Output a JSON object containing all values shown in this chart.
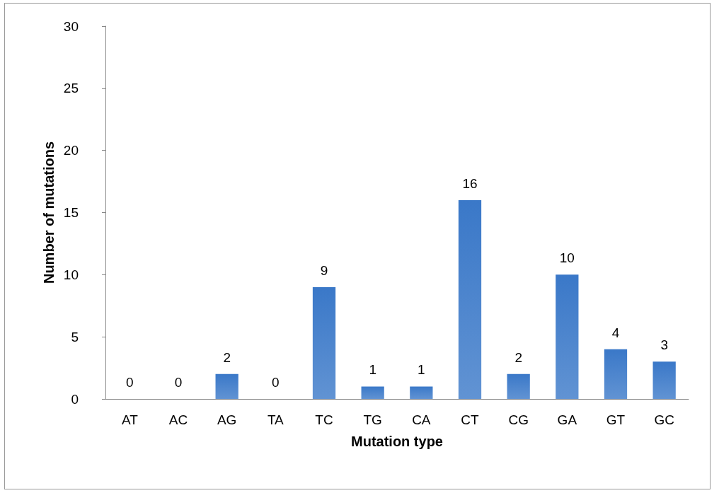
{
  "chart_data": {
    "type": "bar",
    "xlabel": "Mutation type",
    "ylabel": "Number of mutations",
    "categories": [
      "AT",
      "AC",
      "AG",
      "TA",
      "TC",
      "TG",
      "CA",
      "CT",
      "CG",
      "GA",
      "GT",
      "GC"
    ],
    "values": [
      0,
      0,
      2,
      0,
      9,
      1,
      1,
      16,
      2,
      10,
      4,
      3
    ],
    "color": "#3a78c8",
    "ylim": [
      0,
      30
    ],
    "yticks": [
      0,
      5,
      10,
      15,
      20,
      25,
      30
    ],
    "grid": false,
    "data_labels": true
  }
}
